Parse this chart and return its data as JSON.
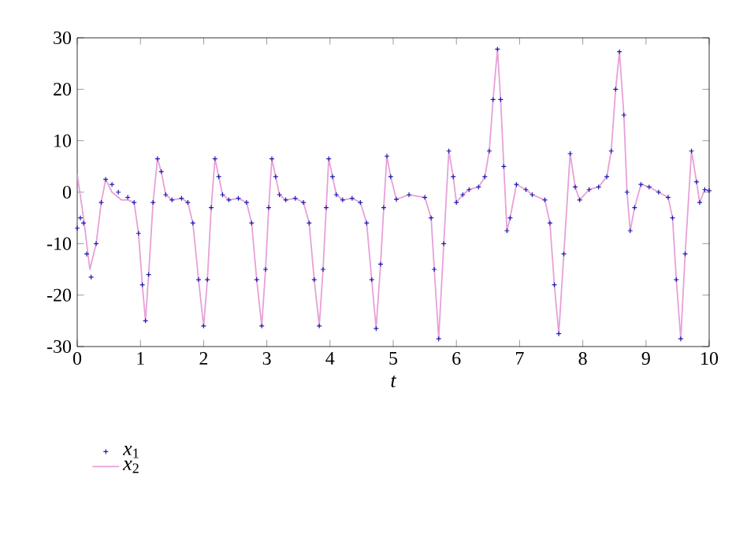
{
  "chart_data": {
    "type": "line",
    "xlabel": "t",
    "xlim": [
      0,
      10
    ],
    "ylim": [
      -30,
      30
    ],
    "xticks": [
      0,
      1,
      2,
      3,
      4,
      5,
      6,
      7,
      8,
      9,
      10
    ],
    "yticks": [
      -30,
      -20,
      -10,
      0,
      10,
      20,
      30
    ],
    "grid": false,
    "legend": "bottom left",
    "series": [
      {
        "name": "*x*$_{1}$",
        "type": "scatter",
        "marker": "cross",
        "color": "#1a1ab4",
        "x": [
          0,
          0.05,
          0.1,
          0.15,
          0.22,
          0.3,
          0.38,
          0.45,
          0.55,
          0.65,
          0.8,
          0.9,
          0.97,
          1.03,
          1.08,
          1.13,
          1.2,
          1.27,
          1.33,
          1.4,
          1.5,
          1.65,
          1.75,
          1.83,
          1.92,
          2.0,
          2.06,
          2.12,
          2.18,
          2.24,
          2.3,
          2.4,
          2.55,
          2.68,
          2.76,
          2.84,
          2.92,
          2.98,
          3.03,
          3.08,
          3.14,
          3.2,
          3.3,
          3.45,
          3.58,
          3.67,
          3.75,
          3.83,
          3.89,
          3.94,
          3.98,
          4.04,
          4.1,
          4.2,
          4.35,
          4.48,
          4.58,
          4.66,
          4.73,
          4.8,
          4.85,
          4.9,
          4.96,
          5.05,
          5.25,
          5.5,
          5.6,
          5.65,
          5.72,
          5.8,
          5.88,
          5.95,
          6.0,
          6.1,
          6.2,
          6.35,
          6.45,
          6.52,
          6.58,
          6.65,
          6.7,
          6.75,
          6.8,
          6.85,
          6.95,
          7.1,
          7.2,
          7.4,
          7.48,
          7.55,
          7.62,
          7.7,
          7.8,
          7.88,
          7.95,
          8.1,
          8.25,
          8.38,
          8.45,
          8.52,
          8.58,
          8.65,
          8.7,
          8.75,
          8.82,
          8.92,
          9.05,
          9.2,
          9.35,
          9.42,
          9.48,
          9.55,
          9.62,
          9.72,
          9.8,
          9.85,
          9.93,
          10
        ],
        "values": [
          -7,
          -5,
          -6,
          -12,
          -16.5,
          -10,
          -2,
          2.5,
          1.5,
          0,
          -1,
          -2,
          -8,
          -18,
          -25,
          -16,
          -2,
          6.5,
          4,
          -0.5,
          -1.5,
          -1.2,
          -2,
          -6,
          -17,
          -26,
          -17,
          -3,
          6.5,
          3,
          -0.5,
          -1.5,
          -1.2,
          -2,
          -6,
          -17,
          -26,
          -15,
          -3,
          6.5,
          3,
          -0.5,
          -1.5,
          -1.2,
          -2,
          -6,
          -17,
          -26,
          -15,
          -3,
          6.5,
          3,
          -0.5,
          -1.5,
          -1.2,
          -2,
          -6,
          -17,
          -26.5,
          -14,
          -3,
          7,
          3,
          -1.4,
          -0.5,
          -1,
          -5,
          -15,
          -28.5,
          -10,
          8,
          3,
          -2,
          -0.5,
          0.5,
          1,
          3,
          8,
          18,
          27.8,
          18,
          5,
          -7.5,
          -5,
          1.5,
          0.5,
          -0.5,
          -1.5,
          -6,
          -18,
          -27.5,
          -12,
          7.5,
          1,
          -1.5,
          0.5,
          1,
          3,
          8,
          20,
          27.3,
          15,
          0,
          -7.5,
          -3,
          1.5,
          1,
          0,
          -1,
          -5,
          -17,
          -28.5,
          -12,
          8,
          2,
          -2,
          0.5,
          0.3
        ]
      },
      {
        "name": "*x*$_{2}$",
        "line_style": "solid",
        "color": "#e8a0d8",
        "x": [
          0,
          0.1,
          0.2,
          0.3,
          0.38,
          0.45,
          0.55,
          0.7,
          0.8,
          0.9,
          0.97,
          1.03,
          1.08,
          1.13,
          1.2,
          1.27,
          1.33,
          1.4,
          1.5,
          1.65,
          1.75,
          1.83,
          1.92,
          2.0,
          2.06,
          2.12,
          2.18,
          2.24,
          2.3,
          2.4,
          2.55,
          2.68,
          2.76,
          2.84,
          2.92,
          2.98,
          3.03,
          3.08,
          3.14,
          3.2,
          3.3,
          3.45,
          3.58,
          3.67,
          3.75,
          3.83,
          3.89,
          3.94,
          3.98,
          4.04,
          4.1,
          4.2,
          4.35,
          4.48,
          4.58,
          4.66,
          4.73,
          4.8,
          4.85,
          4.9,
          4.96,
          5.05,
          5.25,
          5.5,
          5.6,
          5.65,
          5.72,
          5.8,
          5.88,
          5.95,
          6.0,
          6.1,
          6.2,
          6.35,
          6.45,
          6.52,
          6.58,
          6.65,
          6.7,
          6.75,
          6.8,
          6.85,
          6.95,
          7.1,
          7.2,
          7.4,
          7.48,
          7.55,
          7.62,
          7.7,
          7.8,
          7.88,
          7.95,
          8.1,
          8.25,
          8.38,
          8.45,
          8.52,
          8.58,
          8.65,
          8.7,
          8.75,
          8.82,
          8.92,
          9.05,
          9.2,
          9.35,
          9.42,
          9.48,
          9.55,
          9.62,
          9.72,
          9.8,
          9.85,
          9.93,
          10
        ],
        "values": [
          3.5,
          -5,
          -15,
          -10,
          -2,
          2.5,
          0,
          -1.5,
          -1.5,
          -2,
          -8,
          -18,
          -25,
          -16,
          -2,
          6.5,
          4,
          -0.5,
          -1.5,
          -1.2,
          -2,
          -6,
          -17,
          -26,
          -17,
          -3,
          6.5,
          3,
          -0.5,
          -1.5,
          -1.2,
          -2,
          -6,
          -17,
          -26,
          -15,
          -3,
          6.5,
          3,
          -0.5,
          -1.5,
          -1.2,
          -2,
          -6,
          -17,
          -26,
          -15,
          -3,
          6.5,
          3,
          -0.5,
          -1.5,
          -1.2,
          -2,
          -6,
          -17,
          -26.5,
          -14,
          -3,
          7,
          3,
          -1.4,
          -0.5,
          -1,
          -5,
          -15,
          -28.5,
          -10,
          8,
          3,
          -2,
          -0.5,
          0.5,
          1,
          3,
          8,
          18,
          27.8,
          18,
          5,
          -7.5,
          -5,
          1.5,
          0.5,
          -0.5,
          -1.5,
          -6,
          -18,
          -27.5,
          -12,
          7.5,
          1,
          -1.5,
          0.5,
          1,
          3,
          8,
          20,
          27.3,
          15,
          0,
          -7.5,
          -3,
          1.5,
          1,
          0,
          -1,
          -5,
          -17,
          -28.5,
          -12,
          8,
          2,
          -2,
          0.5,
          0.3
        ]
      }
    ]
  }
}
